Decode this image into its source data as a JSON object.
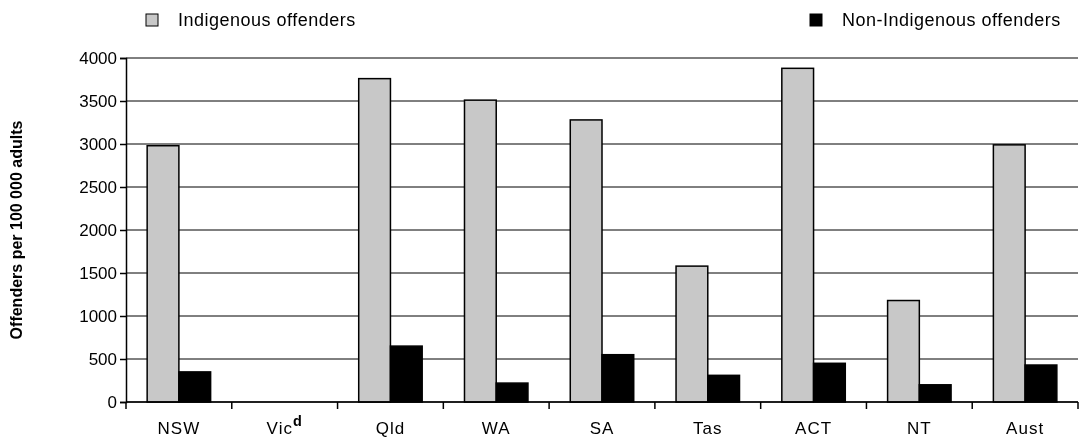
{
  "chart_data": {
    "type": "bar",
    "ylabel": "Offenders per 100 000 adults",
    "categories": [
      "NSW",
      "Vic$^{d}$",
      "Qld",
      "WA",
      "SA",
      "Tas",
      "ACT",
      "NT",
      "Aust"
    ],
    "series": [
      {
        "name": "Indigenous offenders",
        "color": "#c8c8c8",
        "values": [
          2980,
          null,
          3760,
          3510,
          3280,
          1580,
          3880,
          1180,
          2990
        ]
      },
      {
        "name": "Non-Indigenous offenders",
        "color": "#000000",
        "values": [
          350,
          null,
          650,
          220,
          550,
          310,
          450,
          200,
          430
        ]
      }
    ],
    "ylim": [
      0,
      4000
    ],
    "yticks": [
      0,
      500,
      1000,
      1500,
      2000,
      2500,
      3000,
      3500,
      4000
    ],
    "grid": "y",
    "legend": "top"
  }
}
